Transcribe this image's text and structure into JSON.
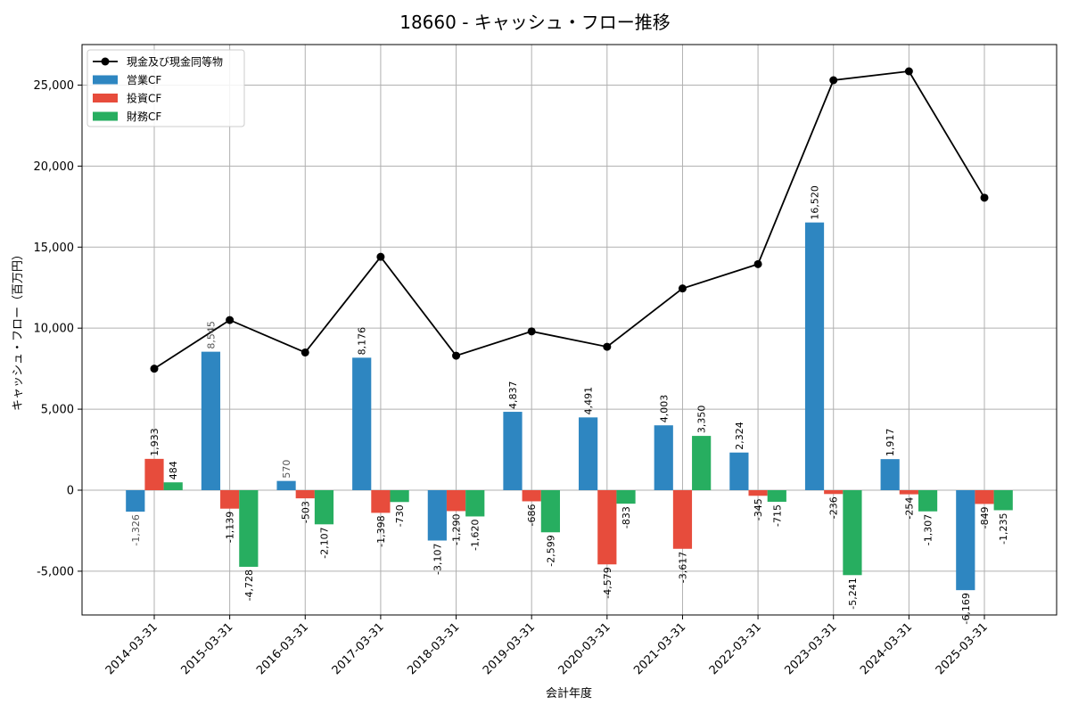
{
  "chart_data": {
    "type": "bar",
    "title": "18660 - キャッシュ・フロー推移",
    "xlabel": "会計年度",
    "ylabel": "キャッシュ・フロー（百万円）",
    "ylim": [
      -7700,
      27500
    ],
    "yticks": [
      -5000,
      0,
      5000,
      10000,
      15000,
      20000,
      25000
    ],
    "ytick_labels": [
      "-5,000",
      "0",
      "5,000",
      "10,000",
      "15,000",
      "20,000",
      "25,000"
    ],
    "grid": true,
    "legend_position": "top-left",
    "categories": [
      "2014-03-31",
      "2015-03-31",
      "2016-03-31",
      "2017-03-31",
      "2018-03-31",
      "2019-03-31",
      "2020-03-31",
      "2021-03-31",
      "2022-03-31",
      "2023-03-31",
      "2024-03-31",
      "2025-03-31"
    ],
    "series": [
      {
        "name": "営業CF",
        "kind": "bar",
        "color": "#2e86c1",
        "values": [
          -1326,
          8545,
          570,
          8176,
          -3107,
          4837,
          4491,
          4003,
          2324,
          16520,
          1917,
          -6169
        ],
        "labels": [
          "-1,326",
          "8,545",
          "570",
          "8,176",
          "-3,107",
          "4,837",
          "4,491",
          "4,003",
          "2,324",
          "16,520",
          "1,917",
          "-6,169"
        ],
        "dim_labels": [
          true,
          true,
          true,
          false,
          false,
          false,
          false,
          false,
          false,
          false,
          false,
          false
        ]
      },
      {
        "name": "投資CF",
        "kind": "bar",
        "color": "#e74c3c",
        "values": [
          1933,
          -1139,
          -503,
          -1398,
          -1290,
          -686,
          -4579,
          -3617,
          -345,
          -236,
          -254,
          -849
        ],
        "labels": [
          "1,933",
          "-1,139",
          "-503",
          "-1,398",
          "-1,290",
          "-686",
          "-4,579",
          "-3,617",
          "-345",
          "-236",
          "-254",
          "-849"
        ]
      },
      {
        "name": "財務CF",
        "kind": "bar",
        "color": "#27ae60",
        "values": [
          484,
          -4728,
          -2107,
          -730,
          -1620,
          -2599,
          -833,
          3350,
          -715,
          -5241,
          -1307,
          -1235
        ],
        "labels": [
          "484",
          "-4,728",
          "-2,107",
          "-730",
          "-1,620",
          "-2,599",
          "-833",
          "3,350",
          "-715",
          "-5,241",
          "-1,307",
          "-1,235"
        ]
      },
      {
        "name": "現金及び現金同等物",
        "kind": "line",
        "color": "#000000",
        "values": [
          7500,
          10500,
          8500,
          14400,
          8300,
          9800,
          8850,
          12450,
          13950,
          25300,
          25850,
          18050
        ]
      }
    ]
  }
}
